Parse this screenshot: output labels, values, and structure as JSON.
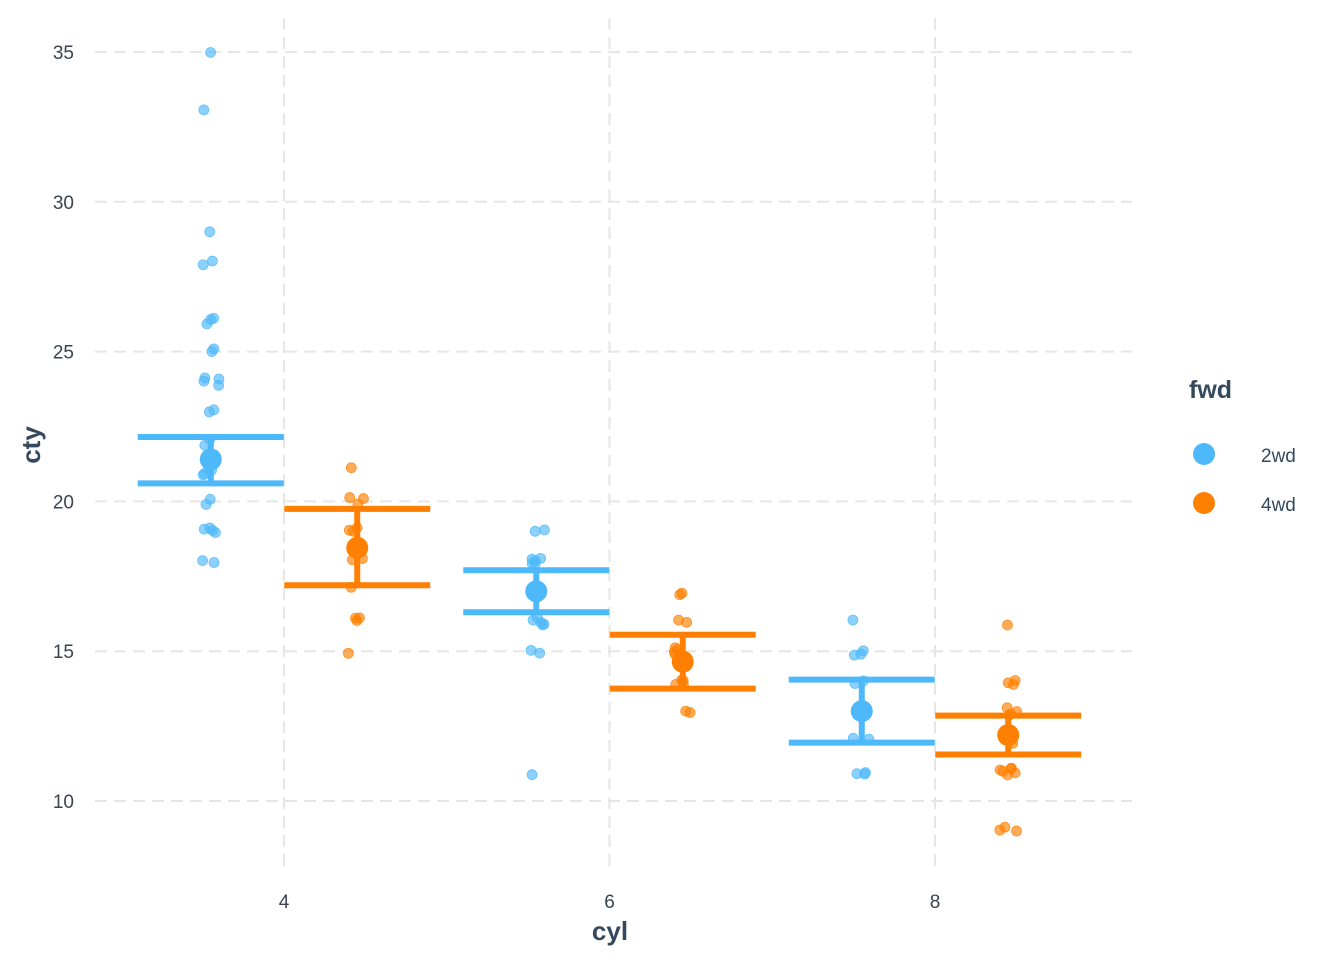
{
  "chart_data": {
    "type": "scatter",
    "subtype": "jittered points with mean and error bars (pointrange)",
    "title": "",
    "xlabel": "cyl",
    "ylabel": "cty",
    "xlim": [
      3.0,
      9.2
    ],
    "ylim": [
      7.8,
      36.1
    ],
    "x_ticks": [
      4,
      6,
      8
    ],
    "y_ticks": [
      10,
      15,
      20,
      25,
      30,
      35
    ],
    "grid": {
      "major": true,
      "style": "dashed",
      "color": "#e5e5e5"
    },
    "legend": {
      "title": "fwd",
      "position": "right",
      "entries": [
        {
          "label": "2wd",
          "color": "#4DB8FA"
        },
        {
          "label": "4wd",
          "color": "#FF7F00"
        }
      ]
    },
    "categories": [
      "4",
      "6",
      "8"
    ],
    "series": [
      {
        "name": "2wd",
        "color": "#4DB8FA",
        "x_offset": -0.45,
        "summary": [
          {
            "cyl": 4,
            "mean": 21.4,
            "upper": 22.15,
            "lower": 20.6
          },
          {
            "cyl": 6,
            "mean": 17.0,
            "upper": 17.7,
            "lower": 16.3
          },
          {
            "cyl": 8,
            "mean": 13.0,
            "upper": 14.05,
            "lower": 11.95
          }
        ],
        "points": [
          {
            "cyl": 4,
            "values": [
              35,
              33,
              29,
              28,
              28,
              26,
              26,
              26,
              25,
              25,
              24,
              24,
              24,
              24,
              23,
              23,
              22,
              22,
              21,
              21,
              21,
              21,
              20,
              20,
              19,
              19,
              19,
              19,
              18,
              18
            ]
          },
          {
            "cyl": 6,
            "values": [
              19,
              19,
              18,
              18,
              18,
              18,
              18,
              16,
              16,
              16,
              16,
              16,
              15,
              15,
              11
            ]
          },
          {
            "cyl": 8,
            "values": [
              16,
              15,
              15,
              15,
              14,
              14,
              12,
              12,
              11,
              11,
              11
            ]
          }
        ]
      },
      {
        "name": "4wd",
        "color": "#FF7F00",
        "x_offset": 0.45,
        "summary": [
          {
            "cyl": 4,
            "mean": 18.45,
            "upper": 19.75,
            "lower": 17.2
          },
          {
            "cyl": 6,
            "mean": 14.65,
            "upper": 15.55,
            "lower": 13.75
          },
          {
            "cyl": 8,
            "mean": 12.2,
            "upper": 12.85,
            "lower": 11.55
          }
        ],
        "points": [
          {
            "cyl": 4,
            "values": [
              21,
              20,
              20,
              20,
              19,
              19,
              19,
              18,
              18,
              17,
              16,
              16,
              16,
              15
            ]
          },
          {
            "cyl": 6,
            "values": [
              17,
              17,
              16,
              16,
              15,
              15,
              15,
              15,
              14,
              14,
              14,
              14,
              13,
              13
            ]
          },
          {
            "cyl": 8,
            "values": [
              16,
              14,
              14,
              14,
              13,
              13,
              13,
              13,
              12,
              12,
              12,
              11,
              11,
              11,
              11,
              11,
              11,
              9,
              9,
              9
            ]
          }
        ]
      }
    ]
  },
  "axes": {
    "x_title": "cyl",
    "y_title": "cty",
    "x_tick_labels": [
      "4",
      "6",
      "8"
    ],
    "y_tick_labels": [
      "10",
      "15",
      "20",
      "25",
      "30",
      "35"
    ]
  },
  "legend": {
    "title": "fwd",
    "items": [
      {
        "label": "2wd",
        "color": "#4DB8FA"
      },
      {
        "label": "4wd",
        "color": "#FF7F00"
      }
    ]
  }
}
